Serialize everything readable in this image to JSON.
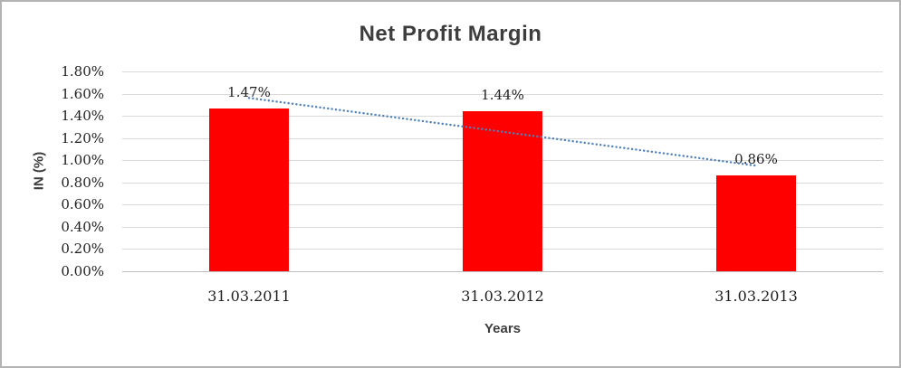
{
  "chart_data": {
    "type": "bar",
    "title": "Net Profit Margin",
    "categories": [
      "31.03.2011",
      "31.03.2012",
      "31.03.2013"
    ],
    "values": [
      1.47,
      1.44,
      0.86
    ],
    "data_labels": [
      "1.47%",
      "1.44%",
      "0.86%"
    ],
    "xlabel": "Years",
    "ylabel": "IN (%)",
    "ylim": [
      0,
      1.8
    ],
    "ytick_step": 0.2,
    "ytick_labels": [
      "0.00%",
      "0.20%",
      "0.40%",
      "0.60%",
      "0.80%",
      "1.00%",
      "1.20%",
      "1.40%",
      "1.60%",
      "1.80%"
    ],
    "grid": true,
    "legend": false,
    "bar_color": "#ff0000",
    "gridline_color": "#d9d9d9",
    "axis_line_color": "#bfbfbf",
    "label_color": "#1f1f1f",
    "title_color": "#3d3d3d",
    "trendline": {
      "type": "linear",
      "style": "dotted",
      "color": "#4e80bc",
      "endpoints_values": [
        1.5617,
        0.9517
      ]
    }
  }
}
